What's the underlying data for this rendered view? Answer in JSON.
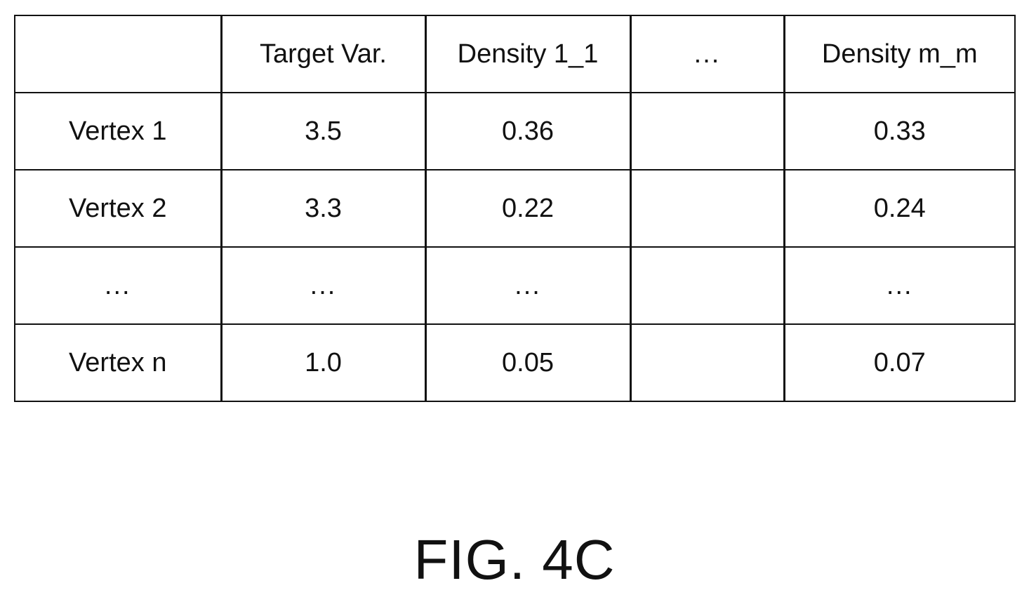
{
  "table": {
    "headers": [
      "",
      "Target Var.",
      "Density 1_1",
      "...",
      "Density m_m"
    ],
    "rows": [
      [
        "Vertex 1",
        "3.5",
        "0.36",
        "",
        "0.33"
      ],
      [
        "Vertex 2",
        "3.3",
        "0.22",
        "",
        "0.24"
      ],
      [
        "...",
        "...",
        "...",
        "",
        "..."
      ],
      [
        "Vertex n",
        "1.0",
        "0.05",
        "",
        "0.07"
      ]
    ]
  },
  "figure_label": "FIG. 4C"
}
